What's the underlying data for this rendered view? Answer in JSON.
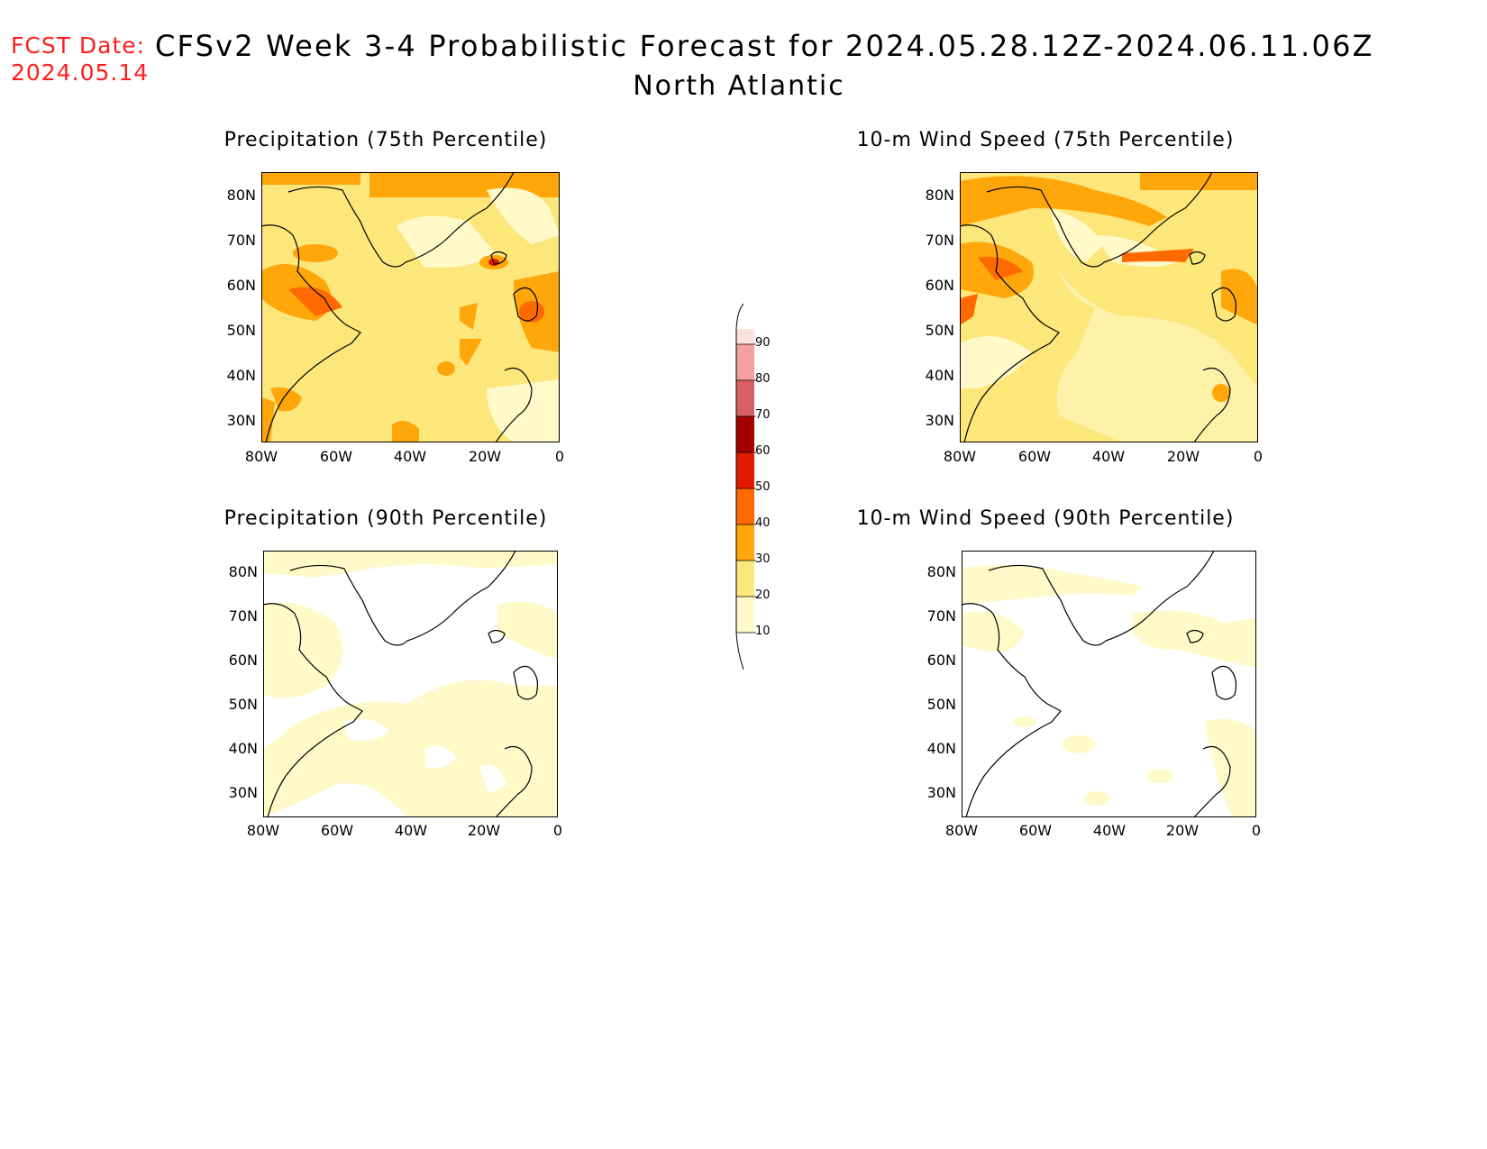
{
  "header": {
    "fcst_label": "FCST Date:",
    "fcst_date": "2024.05.14",
    "title": "CFSv2 Week 3-4 Probabilistic Forecast for 2024.05.28.12Z-2024.06.11.06Z",
    "subtitle": "North Atlantic"
  },
  "panels": [
    {
      "title": "Precipitation (75th Percentile)",
      "dominant": "20-30 %",
      "note": "widespread 20-40 coverage"
    },
    {
      "title": "10-m Wind Speed (75th Percentile)",
      "dominant": "20-30 %",
      "note": "widespread 20-40 coverage"
    },
    {
      "title": "Precipitation (90th Percentile)",
      "dominant": "10-20 %",
      "note": "mostly below 20"
    },
    {
      "title": "10-m Wind Speed (90th Percentile)",
      "dominant": "<10 %",
      "note": "mostly below 10"
    }
  ],
  "axes": {
    "lat_labels": [
      "80N",
      "70N",
      "60N",
      "50N",
      "40N",
      "30N"
    ],
    "lon_labels": [
      "80W",
      "60W",
      "40W",
      "20W",
      "0"
    ]
  },
  "colorbar": {
    "ticks": [
      "10",
      "20",
      "30",
      "40",
      "50",
      "60",
      "70",
      "80",
      "90"
    ],
    "colors": [
      "#fffac8",
      "#fde67a",
      "#fea60a",
      "#fe6a00",
      "#e31a00",
      "#a50000",
      "#d96060",
      "#f2a0a0",
      "#fde0e0"
    ]
  }
}
